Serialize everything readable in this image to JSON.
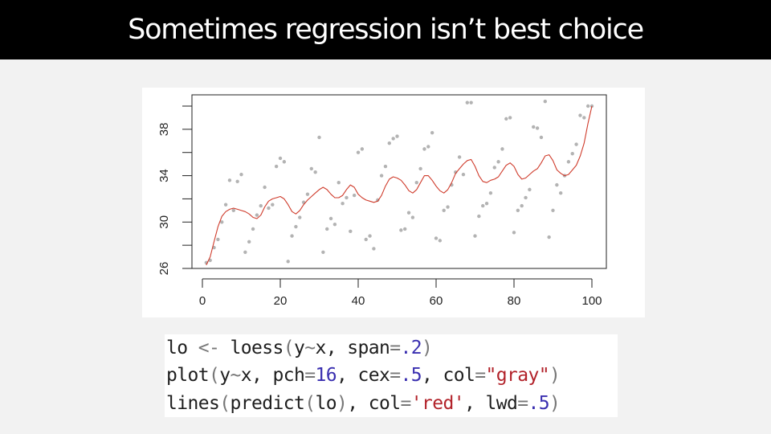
{
  "slide": {
    "title": "Sometimes regression isn’t best choice"
  },
  "colors": {
    "points": "#b3b3b3",
    "fit_line": "#cf3b2b",
    "number": "#3a2fb0",
    "string": "#b2222a"
  },
  "code": {
    "line1": [
      {
        "t": "lo ",
        "k": "plain"
      },
      {
        "t": "<-",
        "k": "op"
      },
      {
        "t": " loess",
        "k": "plain"
      },
      {
        "t": "(",
        "k": "op"
      },
      {
        "t": "y",
        "k": "plain"
      },
      {
        "t": "~",
        "k": "op"
      },
      {
        "t": "x, span",
        "k": "plain"
      },
      {
        "t": "=",
        "k": "op"
      },
      {
        "t": ".2",
        "k": "num"
      },
      {
        "t": ")",
        "k": "op"
      }
    ],
    "line2": [
      {
        "t": "plot",
        "k": "plain"
      },
      {
        "t": "(",
        "k": "op"
      },
      {
        "t": "y",
        "k": "plain"
      },
      {
        "t": "~",
        "k": "op"
      },
      {
        "t": "x, pch",
        "k": "plain"
      },
      {
        "t": "=",
        "k": "op"
      },
      {
        "t": "16",
        "k": "num"
      },
      {
        "t": ", cex",
        "k": "plain"
      },
      {
        "t": "=",
        "k": "op"
      },
      {
        "t": ".5",
        "k": "num"
      },
      {
        "t": ", col",
        "k": "plain"
      },
      {
        "t": "=",
        "k": "op"
      },
      {
        "t": "\"gray\"",
        "k": "str"
      },
      {
        "t": ")",
        "k": "op"
      }
    ],
    "line3": [
      {
        "t": "lines",
        "k": "plain"
      },
      {
        "t": "(",
        "k": "op"
      },
      {
        "t": "predict",
        "k": "plain"
      },
      {
        "t": "(",
        "k": "op"
      },
      {
        "t": "lo",
        "k": "plain"
      },
      {
        "t": ")",
        "k": "op"
      },
      {
        "t": ", col",
        "k": "plain"
      },
      {
        "t": "=",
        "k": "op"
      },
      {
        "t": "'red'",
        "k": "str"
      },
      {
        "t": ", lwd",
        "k": "plain"
      },
      {
        "t": "=",
        "k": "op"
      },
      {
        "t": ".5",
        "k": "num"
      },
      {
        "t": ")",
        "k": "op"
      }
    ]
  },
  "chart_data": {
    "type": "scatter",
    "title": "",
    "xlabel": "",
    "ylabel": "",
    "xlim": [
      0,
      100
    ],
    "ylim": [
      26,
      40
    ],
    "xticks": [
      0,
      20,
      40,
      60,
      80,
      100
    ],
    "xtick_labels": [
      "0",
      "20",
      "40",
      "60",
      "80",
      "100"
    ],
    "yticks": [
      26,
      30,
      34,
      38
    ],
    "ytick_labels": [
      "26",
      "30",
      "34",
      "38"
    ],
    "y_minor_ticks": [
      28,
      32,
      36,
      40
    ],
    "grid": false,
    "series": [
      {
        "kind": "points",
        "x": [
          1,
          2,
          3,
          4,
          5,
          6,
          7,
          8,
          9,
          10,
          11,
          12,
          13,
          14,
          15,
          16,
          17,
          18,
          19,
          20,
          21,
          22,
          23,
          24,
          25,
          26,
          27,
          28,
          29,
          30,
          31,
          32,
          33,
          34,
          35,
          36,
          37,
          38,
          39,
          40,
          41,
          42,
          43,
          44,
          45,
          46,
          47,
          48,
          49,
          50,
          51,
          52,
          53,
          54,
          55,
          56,
          57,
          58,
          59,
          60,
          61,
          62,
          63,
          64,
          65,
          66,
          67,
          68,
          69,
          70,
          71,
          72,
          73,
          74,
          75,
          76,
          77,
          78,
          79,
          80,
          81,
          82,
          83,
          84,
          85,
          86,
          87,
          88,
          89,
          90,
          91,
          92,
          93,
          94,
          95,
          96,
          97,
          98,
          99,
          100
        ],
        "y": [
          26.5,
          26.7,
          27.8,
          28.5,
          30.0,
          31.5,
          33.6,
          31.0,
          33.5,
          34.1,
          27.4,
          28.3,
          29.4,
          30.6,
          31.4,
          33.0,
          31.2,
          31.5,
          34.8,
          35.5,
          35.2,
          26.6,
          28.8,
          29.6,
          30.4,
          31.7,
          32.4,
          34.6,
          34.3,
          37.3,
          27.4,
          29.4,
          30.3,
          29.8,
          33.4,
          31.6,
          32.1,
          29.2,
          32.3,
          36.0,
          36.3,
          28.5,
          28.8,
          27.7,
          31.9,
          34.0,
          34.8,
          36.8,
          37.2,
          37.4,
          29.3,
          29.4,
          30.8,
          30.4,
          33.4,
          34.6,
          36.3,
          36.5,
          37.7,
          28.6,
          28.4,
          31.0,
          31.3,
          33.2,
          34.3,
          35.6,
          34.1,
          40.3,
          40.3,
          28.8,
          30.5,
          31.4,
          31.6,
          32.5,
          34.7,
          35.2,
          36.3,
          38.9,
          39.0,
          29.1,
          31.0,
          31.4,
          32.1,
          32.8,
          38.2,
          38.1,
          37.3,
          40.4,
          28.7,
          31.0,
          33.2,
          32.5,
          34.0,
          35.2,
          35.9,
          36.7,
          39.2,
          39.0,
          40.0,
          40.0
        ]
      },
      {
        "kind": "line",
        "x": [
          1,
          2,
          3,
          4,
          5,
          6,
          7,
          8,
          9,
          10,
          11,
          12,
          13,
          14,
          15,
          16,
          17,
          18,
          19,
          20,
          21,
          22,
          23,
          24,
          25,
          26,
          27,
          28,
          29,
          30,
          31,
          32,
          33,
          34,
          35,
          36,
          37,
          38,
          39,
          40,
          41,
          42,
          43,
          44,
          45,
          46,
          47,
          48,
          49,
          50,
          51,
          52,
          53,
          54,
          55,
          56,
          57,
          58,
          59,
          60,
          61,
          62,
          63,
          64,
          65,
          66,
          67,
          68,
          69,
          70,
          71,
          72,
          73,
          74,
          75,
          76,
          77,
          78,
          79,
          80,
          81,
          82,
          83,
          84,
          85,
          86,
          87,
          88,
          89,
          90,
          91,
          92,
          93,
          94,
          95,
          96,
          97,
          98,
          99,
          100
        ],
        "y": [
          26.3,
          27.0,
          28.3,
          29.6,
          30.5,
          30.9,
          31.1,
          31.2,
          31.1,
          31.0,
          30.9,
          30.7,
          30.4,
          30.3,
          30.6,
          31.3,
          31.8,
          32.0,
          32.1,
          32.2,
          32.0,
          31.5,
          30.9,
          30.7,
          31.0,
          31.5,
          31.9,
          32.2,
          32.5,
          32.8,
          33.0,
          32.8,
          32.4,
          32.1,
          32.1,
          32.3,
          32.8,
          33.2,
          33.0,
          32.4,
          32.1,
          31.9,
          31.8,
          31.7,
          31.8,
          32.3,
          33.1,
          33.7,
          33.9,
          33.8,
          33.6,
          33.2,
          32.7,
          32.5,
          32.8,
          33.4,
          34.0,
          34.0,
          33.6,
          33.1,
          32.7,
          32.5,
          32.8,
          33.4,
          34.2,
          34.6,
          35.0,
          35.3,
          35.4,
          34.8,
          34.0,
          33.5,
          33.4,
          33.6,
          33.7,
          33.9,
          34.4,
          34.9,
          35.1,
          34.8,
          34.1,
          33.7,
          33.8,
          34.1,
          34.4,
          34.6,
          35.1,
          35.7,
          35.8,
          35.3,
          34.5,
          34.2,
          34.0,
          34.1,
          34.5,
          34.9,
          35.7,
          36.8,
          38.5,
          40.0
        ]
      }
    ]
  }
}
